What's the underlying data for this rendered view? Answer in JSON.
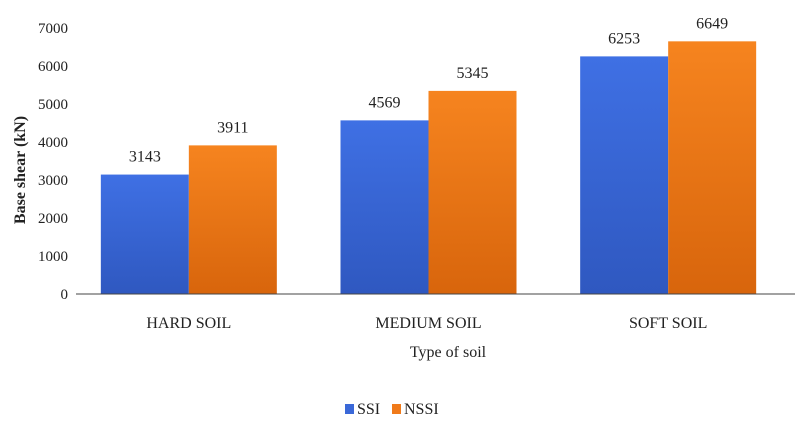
{
  "chart_data": {
    "type": "bar",
    "title": "",
    "xlabel": "Type of soil",
    "ylabel": "Base shear (kN)",
    "ylim": [
      0,
      7000
    ],
    "ytick_step": 1000,
    "grid": false,
    "legend_position": "bottom",
    "categories": [
      "HARD SOIL",
      "MEDIUM SOIL",
      "SOFT SOIL"
    ],
    "series": [
      {
        "name": "SSI",
        "values": [
          3143,
          4569,
          6253
        ],
        "color": "#3a68d8"
      },
      {
        "name": "NSSI",
        "values": [
          3911,
          5345,
          6649
        ],
        "color": "#f07a1a"
      }
    ]
  }
}
